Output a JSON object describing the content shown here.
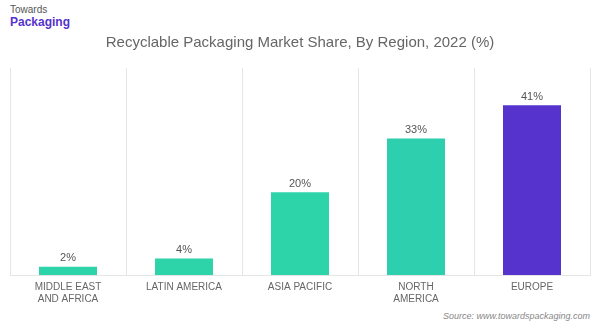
{
  "chart_data": {
    "type": "bar",
    "title": "Recyclable Packaging Market Share, By Region, 2022 (%)",
    "categories": [
      "MIDDLE EAST\nAND AFRICA",
      "LATIN AMERICA",
      "ASIA PACIFIC",
      "NORTH\nAMERICA",
      "EUROPE"
    ],
    "values": [
      2,
      4,
      20,
      33,
      41
    ],
    "value_labels": [
      "2%",
      "4%",
      "20%",
      "33%",
      "41%"
    ],
    "colors": [
      "#2dd4aa",
      "#2dd4aa",
      "#2dd4aa",
      "#2ecfae",
      "#5533cc"
    ],
    "ylim": [
      0,
      50
    ],
    "grid": true,
    "data_labels": true,
    "tick_labels": "x",
    "annotations": [
      "Towards",
      "Packaging",
      "Source: www.towardspackaging.com"
    ]
  }
}
